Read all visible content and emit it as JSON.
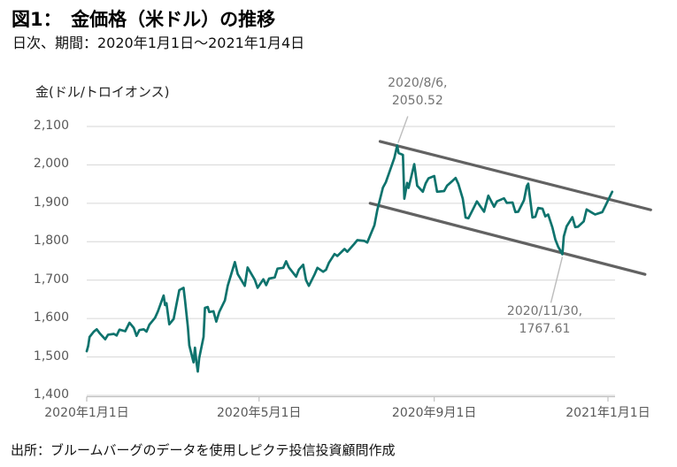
{
  "header": {
    "title": "図1：　金価格（米ドル）の推移",
    "subtitle": "日次、期間：2020年1月1日～2021年1月4日"
  },
  "footer": {
    "source": "出所：ブルームバーグのデータを使用しピクテ投信投資顧問作成"
  },
  "chart_data": {
    "type": "line",
    "title": "金価格（米ドル）の推移",
    "ylabel": "金(ドル/トロイオンス)",
    "xlabel": "",
    "ylim": [
      1400,
      2100
    ],
    "x_range": [
      "2020/1/1",
      "2021/1/4"
    ],
    "grid": true,
    "legend": false,
    "y_ticks": [
      {
        "value": 2100,
        "label": "2,100"
      },
      {
        "value": 2000,
        "label": "2,000"
      },
      {
        "value": 1900,
        "label": "1,900"
      },
      {
        "value": 1800,
        "label": "1,800"
      },
      {
        "value": 1700,
        "label": "1,700"
      },
      {
        "value": 1600,
        "label": "1,600"
      },
      {
        "value": 1500,
        "label": "1,500"
      },
      {
        "value": 1400,
        "label": "1,400"
      }
    ],
    "x_ticks": [
      {
        "date": "2020/1/1",
        "label": "2020年1月1日"
      },
      {
        "date": "2020/5/1",
        "label": "2020年5月1日"
      },
      {
        "date": "2020/9/1",
        "label": "2020年9月1日"
      },
      {
        "date": "2021/1/1",
        "label": "2021年1月1日"
      }
    ],
    "series": [
      {
        "name": "金価格（米ドル）",
        "color": "#0e736d",
        "points": [
          [
            "2020/1/1",
            1515
          ],
          [
            "2020/1/2",
            1528
          ],
          [
            "2020/1/3",
            1552
          ],
          [
            "2020/1/6",
            1566
          ],
          [
            "2020/1/8",
            1572
          ],
          [
            "2020/1/10",
            1562
          ],
          [
            "2020/1/14",
            1546
          ],
          [
            "2020/1/16",
            1558
          ],
          [
            "2020/1/20",
            1560
          ],
          [
            "2020/1/22",
            1556
          ],
          [
            "2020/1/24",
            1571
          ],
          [
            "2020/1/28",
            1567
          ],
          [
            "2020/1/31",
            1589
          ],
          [
            "2020/2/3",
            1576
          ],
          [
            "2020/2/5",
            1555
          ],
          [
            "2020/2/7",
            1570
          ],
          [
            "2020/2/10",
            1572
          ],
          [
            "2020/2/12",
            1566
          ],
          [
            "2020/2/14",
            1584
          ],
          [
            "2020/2/18",
            1602
          ],
          [
            "2020/2/20",
            1619
          ],
          [
            "2020/2/24",
            1660
          ],
          [
            "2020/2/25",
            1635
          ],
          [
            "2020/2/26",
            1640
          ],
          [
            "2020/2/28",
            1585
          ],
          [
            "2020/3/2",
            1599
          ],
          [
            "2020/3/4",
            1637
          ],
          [
            "2020/3/6",
            1674
          ],
          [
            "2020/3/9",
            1680
          ],
          [
            "2020/3/10",
            1649
          ],
          [
            "2020/3/12",
            1578
          ],
          [
            "2020/3/13",
            1530
          ],
          [
            "2020/3/16",
            1486
          ],
          [
            "2020/3/17",
            1524
          ],
          [
            "2020/3/18",
            1488
          ],
          [
            "2020/3/19",
            1462
          ],
          [
            "2020/3/20",
            1497
          ],
          [
            "2020/3/23",
            1552
          ],
          [
            "2020/3/24",
            1628
          ],
          [
            "2020/3/26",
            1630
          ],
          [
            "2020/3/27",
            1617
          ],
          [
            "2020/3/30",
            1619
          ],
          [
            "2020/4/1",
            1592
          ],
          [
            "2020/4/3",
            1617
          ],
          [
            "2020/4/7",
            1647
          ],
          [
            "2020/4/9",
            1685
          ],
          [
            "2020/4/14",
            1747
          ],
          [
            "2020/4/16",
            1716
          ],
          [
            "2020/4/21",
            1685
          ],
          [
            "2020/4/23",
            1733
          ],
          [
            "2020/4/28",
            1701
          ],
          [
            "2020/4/30",
            1680
          ],
          [
            "2020/5/4",
            1702
          ],
          [
            "2020/5/6",
            1687
          ],
          [
            "2020/5/8",
            1704
          ],
          [
            "2020/5/12",
            1707
          ],
          [
            "2020/5/14",
            1730
          ],
          [
            "2020/5/18",
            1732
          ],
          [
            "2020/5/20",
            1749
          ],
          [
            "2020/5/22",
            1733
          ],
          [
            "2020/5/27",
            1709
          ],
          [
            "2020/5/29",
            1728
          ],
          [
            "2020/6/1",
            1740
          ],
          [
            "2020/6/3",
            1700
          ],
          [
            "2020/6/5",
            1685
          ],
          [
            "2020/6/9",
            1715
          ],
          [
            "2020/6/11",
            1732
          ],
          [
            "2020/6/15",
            1722
          ],
          [
            "2020/6/17",
            1727
          ],
          [
            "2020/6/19",
            1745
          ],
          [
            "2020/6/23",
            1768
          ],
          [
            "2020/6/25",
            1763
          ],
          [
            "2020/6/30",
            1781
          ],
          [
            "2020/7/2",
            1774
          ],
          [
            "2020/7/7",
            1795
          ],
          [
            "2020/7/9",
            1804
          ],
          [
            "2020/7/14",
            1802
          ],
          [
            "2020/7/16",
            1798
          ],
          [
            "2020/7/21",
            1843
          ],
          [
            "2020/7/23",
            1882
          ],
          [
            "2020/7/27",
            1941
          ],
          [
            "2020/7/29",
            1955
          ],
          [
            "2020/7/31",
            1976
          ],
          [
            "2020/8/4",
            2018
          ],
          [
            "2020/8/6",
            2050.52
          ],
          [
            "2020/8/7",
            2031
          ],
          [
            "2020/8/10",
            2026
          ],
          [
            "2020/8/11",
            1912
          ],
          [
            "2020/8/13",
            1953
          ],
          [
            "2020/8/14",
            1940
          ],
          [
            "2020/8/18",
            2002
          ],
          [
            "2020/8/20",
            1946
          ],
          [
            "2020/8/24",
            1930
          ],
          [
            "2020/8/26",
            1952
          ],
          [
            "2020/8/28",
            1965
          ],
          [
            "2020/9/1",
            1971
          ],
          [
            "2020/9/3",
            1930
          ],
          [
            "2020/9/8",
            1932
          ],
          [
            "2020/9/10",
            1946
          ],
          [
            "2020/9/14",
            1959
          ],
          [
            "2020/9/16",
            1966
          ],
          [
            "2020/9/18",
            1950
          ],
          [
            "2020/9/21",
            1912
          ],
          [
            "2020/9/23",
            1863
          ],
          [
            "2020/9/25",
            1861
          ],
          [
            "2020/9/29",
            1890
          ],
          [
            "2020/10/1",
            1905
          ],
          [
            "2020/10/6",
            1878
          ],
          [
            "2020/10/9",
            1920
          ],
          [
            "2020/10/13",
            1891
          ],
          [
            "2020/10/15",
            1905
          ],
          [
            "2020/10/20",
            1913
          ],
          [
            "2020/10/22",
            1901
          ],
          [
            "2020/10/26",
            1902
          ],
          [
            "2020/10/28",
            1877
          ],
          [
            "2020/10/30",
            1878
          ],
          [
            "2020/11/3",
            1908
          ],
          [
            "2020/11/5",
            1945
          ],
          [
            "2020/11/6",
            1951
          ],
          [
            "2020/11/9",
            1863
          ],
          [
            "2020/11/11",
            1865
          ],
          [
            "2020/11/13",
            1888
          ],
          [
            "2020/11/16",
            1886
          ],
          [
            "2020/11/18",
            1866
          ],
          [
            "2020/11/20",
            1871
          ],
          [
            "2020/11/23",
            1837
          ],
          [
            "2020/11/25",
            1806
          ],
          [
            "2020/11/27",
            1787
          ],
          [
            "2020/11/30",
            1767.61
          ],
          [
            "2020/12/1",
            1814
          ],
          [
            "2020/12/3",
            1840
          ],
          [
            "2020/12/7",
            1864
          ],
          [
            "2020/12/9",
            1838
          ],
          [
            "2020/12/11",
            1839
          ],
          [
            "2020/12/15",
            1853
          ],
          [
            "2020/12/17",
            1884
          ],
          [
            "2020/12/21",
            1875
          ],
          [
            "2020/12/23",
            1871
          ],
          [
            "2020/12/28",
            1877
          ],
          [
            "2020/12/30",
            1892
          ],
          [
            "2021/1/4",
            1930
          ]
        ]
      }
    ],
    "trendlines": [
      {
        "name": "upper-channel",
        "points": [
          [
            "2020/7/25",
            2061
          ],
          [
            "2021/1/31",
            1883
          ]
        ]
      },
      {
        "name": "lower-channel",
        "points": [
          [
            "2020/7/18",
            1900
          ],
          [
            "2021/1/27",
            1715
          ]
        ]
      }
    ],
    "annotations": [
      {
        "date": "2020/8/6",
        "value": 2050.52,
        "line1": "2020/8/6,",
        "line2": "2050.52",
        "position": "above"
      },
      {
        "date": "2020/11/30",
        "value": 1767.61,
        "line1": "2020/11/30,",
        "line2": "1767.61",
        "position": "below"
      }
    ],
    "colors": {
      "line": "#0e736d",
      "trend": "#4d4d4d",
      "grid": "#d6d6d6",
      "axis": "#c2c2c2",
      "axis_text": "#595959",
      "annotation_text": "#737373",
      "leader": "#bdbdbd"
    }
  }
}
